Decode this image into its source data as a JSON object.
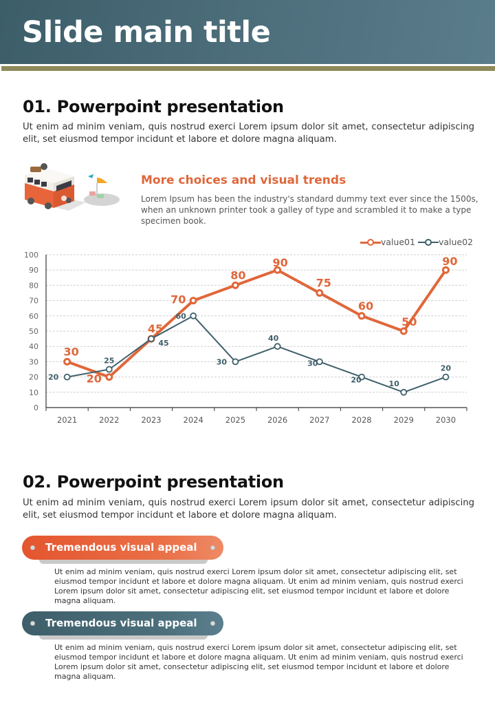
{
  "header": {
    "title": "Slide main title"
  },
  "section1": {
    "title": "01. Powerpoint presentation",
    "body": "Ut enim ad minim veniam, quis nostrud exerci  Lorem ipsum dolor sit amet, consectetur adipiscing elit, set eiusmod tempor incidunt et labore et dolore magna aliquam."
  },
  "feature": {
    "illustration": "camper-van-icon",
    "title": "More choices and visual trends",
    "body": "Lorem Ipsum has been the industry's standard dummy text ever since the 1500s, when an unknown printer took a galley of type and scrambled it to make a type specimen book."
  },
  "colors": {
    "accent_orange": "#e0673a",
    "accent_teal": "#3e5f6a",
    "rule_olive": "#8e8a5b"
  },
  "chart_data": {
    "type": "line",
    "title": "",
    "xlabel": "",
    "ylabel": "",
    "categories": [
      "2021",
      "2022",
      "2023",
      "2024",
      "2025",
      "2026",
      "2027",
      "2028",
      "2029",
      "2030"
    ],
    "ylim": [
      0,
      100
    ],
    "yticks": [
      0,
      10,
      20,
      30,
      40,
      50,
      60,
      70,
      80,
      90,
      100
    ],
    "grid": true,
    "legend_position": "top-right",
    "series": [
      {
        "name": "value01",
        "color": "#e0673a",
        "values": [
          30,
          20,
          45,
          70,
          80,
          90,
          75,
          60,
          50,
          90
        ]
      },
      {
        "name": "value02",
        "color": "#3e5f6a",
        "values": [
          20,
          25,
          45,
          60,
          30,
          40,
          30,
          20,
          10,
          20
        ]
      }
    ]
  },
  "section2": {
    "title": "02. Powerpoint presentation",
    "body": "Ut enim ad minim veniam, quis nostrud exerci  Lorem ipsum dolor sit amet, consectetur adipiscing elit, set eiusmod tempor incidunt et labore et dolore magna aliquam."
  },
  "pills": [
    {
      "label": "Tremendous visual appeal",
      "body": "Ut enim ad minim veniam, quis nostrud exerci  Lorem ipsum dolor sit amet, consectetur adipiscing elit, set eiusmod tempor incidunt et labore et dolore magna aliquam. Ut enim ad minim veniam, quis nostrud exerci Lorem ipsum dolor sit amet, consectetur adipiscing elit, set eiusmod tempor incidunt et labore et dolore magna aliquam."
    },
    {
      "label": "Tremendous visual appeal",
      "body": "Ut enim ad minim veniam, quis nostrud exerci  Lorem ipsum dolor sit amet, consectetur adipiscing elit, set eiusmod tempor incidunt et labore et dolore magna aliquam. Ut enim ad minim veniam, quis nostrud exerci Lorem ipsum dolor sit amet, consectetur adipiscing elit, set eiusmod tempor incidunt et labore et dolore magna aliquam."
    }
  ]
}
